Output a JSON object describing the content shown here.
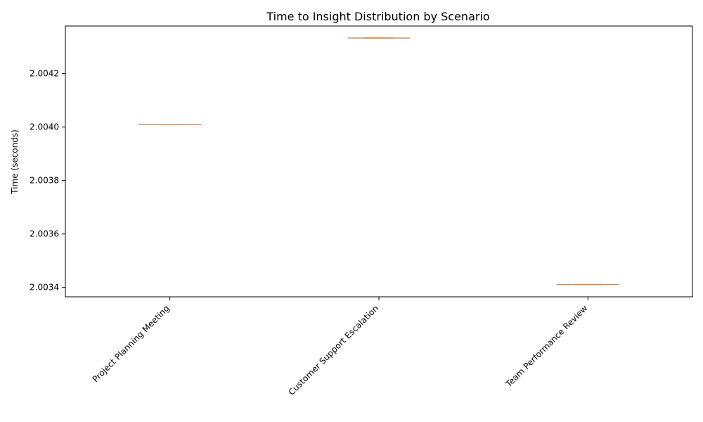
{
  "chart_data": {
    "type": "box",
    "title": "Time to Insight Distribution by Scenario",
    "xlabel": "",
    "ylabel": "Time (seconds)",
    "categories": [
      "Project Planning Meeting",
      "Customer Support Escalation",
      "Team Performance Review"
    ],
    "values": [
      2.004009,
      2.004333,
      2.003411
    ],
    "ylim": [
      2.003365,
      2.004378
    ],
    "yticks": [
      2.0034,
      2.0036,
      2.0038,
      2.004,
      2.0042
    ],
    "ytick_labels": [
      "2.0034",
      "2.0036",
      "2.0038",
      "2.0040",
      "2.0042"
    ],
    "grid": false,
    "legend": "none",
    "colors": {
      "box": "#c58b63",
      "median": "#d9894b",
      "axis": "#000000",
      "background": "#ffffff"
    }
  }
}
